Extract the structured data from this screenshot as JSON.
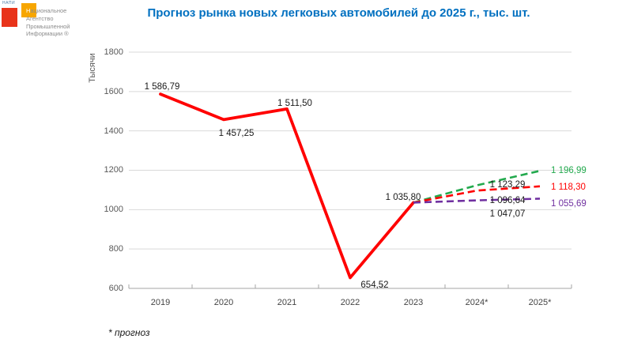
{
  "logo": {
    "acronym": "НАПИ",
    "lines": [
      "Национальное",
      "Агентство",
      "Промышленной",
      "Информации ®"
    ],
    "red_square_color": "#E8331A",
    "orange_square_color": "#F7A600"
  },
  "title": "Прогноз рынка новых легковых автомобилей до 2025 г., тыс. шт.",
  "title_color": "#0070C0",
  "footnote": "* прогноз",
  "chart_data": {
    "type": "line",
    "title": "Прогноз рынка новых легковых автомобилей до 2025 г., тыс. шт.",
    "categories": [
      "2019",
      "2020",
      "2021",
      "2022",
      "2023",
      "2024*",
      "2025*"
    ],
    "xlabel": "",
    "ylabel": "Тысячи",
    "ylim": [
      600,
      1800
    ],
    "ytick_step": 200,
    "ytick_labels": [
      "1800",
      "1600",
      "1400",
      "1200",
      "1000",
      "800",
      "600"
    ],
    "grid": "horizontal",
    "legend": "none",
    "grid_color": "#D9D9D9",
    "axis_color": "#A6A6A6",
    "series": [
      {
        "id": "actual",
        "color": "#FF0000",
        "style": "solid",
        "x_idx": [
          0,
          1,
          2,
          3,
          4
        ],
        "values": [
          1586.79,
          1457.25,
          1511.5,
          654.52,
          1035.8
        ]
      },
      {
        "id": "forecast-high",
        "color": "#22A94D",
        "style": "dashed",
        "x_idx": [
          4,
          5,
          6
        ],
        "values": [
          1035.8,
          1123.29,
          1196.99
        ]
      },
      {
        "id": "forecast-base",
        "color": "#FF0000",
        "style": "dashed",
        "x_idx": [
          4,
          5,
          6
        ],
        "values": [
          1035.8,
          1096.64,
          1118.3
        ]
      },
      {
        "id": "forecast-low",
        "color": "#7030A0",
        "style": "dashed",
        "x_idx": [
          4,
          5,
          6
        ],
        "values": [
          1035.8,
          1047.07,
          1055.69
        ]
      }
    ],
    "point_labels": [
      {
        "text": "1 586,79",
        "color": "#1A1A1A"
      },
      {
        "text": "1 457,25",
        "color": "#1A1A1A"
      },
      {
        "text": "1 511,50",
        "color": "#1A1A1A"
      },
      {
        "text": "654,52",
        "color": "#1A1A1A"
      },
      {
        "text": "1 035,80",
        "color": "#1A1A1A"
      },
      {
        "text": "1 123,29",
        "color": "#1A1A1A"
      },
      {
        "text": "1 096,64",
        "color": "#1A1A1A"
      },
      {
        "text": "1 047,07",
        "color": "#1A1A1A"
      },
      {
        "text": "1 196,99",
        "color": "#22A94D"
      },
      {
        "text": "1 118,30",
        "color": "#FF0000"
      },
      {
        "text": "1 055,69",
        "color": "#7030A0"
      }
    ]
  }
}
